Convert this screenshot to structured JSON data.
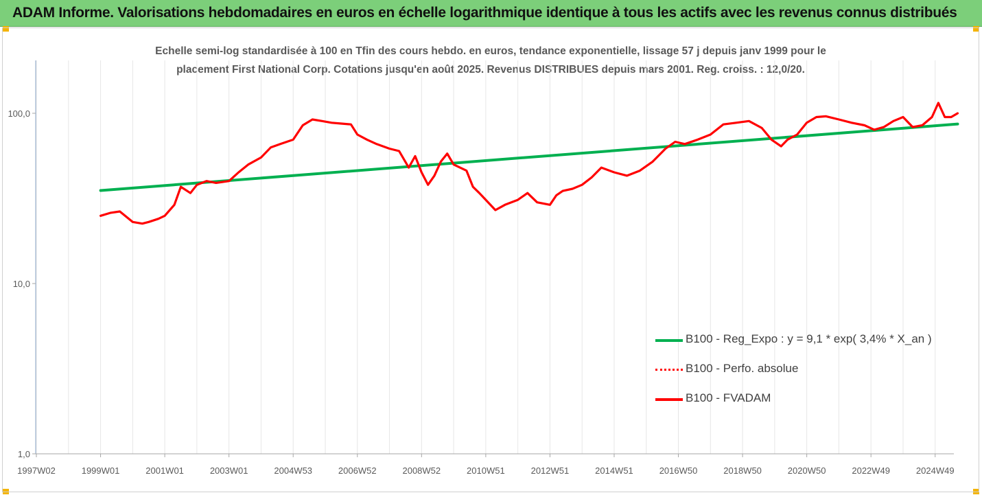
{
  "header": {
    "title": "ADAM Informe. Valorisations hebdomadaires en euros en échelle logarithmique identique à tous les actifs avec les revenus connus distribués"
  },
  "chart_data": {
    "type": "line",
    "subtitle_line1": "Echelle semi-log standardisée à 100 en Tfin des cours hebdo. en euros, tendance exponentielle, lissage 57 j depuis janv 1999 pour le",
    "subtitle_line2": "placement First National Corp. Cotations jusqu'en août 2025. Revenus DISTRIBUES depuis mars 2001. Reg. croiss. : 12,0/20.",
    "y_scale": "log",
    "ylim": [
      1,
      200
    ],
    "y_ticks": [
      "100,0",
      "10,0",
      "1,0"
    ],
    "y_tick_values": [
      100,
      10,
      1
    ],
    "xlim": [
      1997.0,
      2025.7
    ],
    "x_ticks": [
      "1997W02",
      "1999W01",
      "2001W01",
      "2003W01",
      "2004W53",
      "2006W52",
      "2008W52",
      "2010W51",
      "2012W51",
      "2014W51",
      "2016W50",
      "2018W50",
      "2020W50",
      "2022W49",
      "2024W49"
    ],
    "x_tick_values": [
      1997.0,
      1999.0,
      2001.0,
      2003.0,
      2005.0,
      2007.0,
      2009.0,
      2011.0,
      2013.0,
      2015.0,
      2017.0,
      2019.0,
      2021.0,
      2023.0,
      2025.0
    ],
    "grid": "vertical",
    "legend_position": "bottom-right",
    "series": [
      {
        "name": "B100 - Reg_Expo : y = 9,1 * exp( 3,4% *  X_an )",
        "color": "#00b050",
        "style": "solid",
        "x": [
          1999.0,
          2025.7
        ],
        "y": [
          35.2,
          86.5
        ]
      },
      {
        "name": "B100 - Perfo. absolue",
        "color": "#ff0000",
        "style": "dotted",
        "x": [],
        "y": []
      },
      {
        "name": "B100 - FVADAM",
        "color": "#ff0000",
        "style": "solid",
        "x": [
          1999.0,
          1999.3,
          1999.6,
          2000.0,
          2000.3,
          2000.5,
          2000.8,
          2001.0,
          2001.3,
          2001.5,
          2001.8,
          2002.0,
          2002.3,
          2002.6,
          2003.0,
          2003.3,
          2003.6,
          2004.0,
          2004.3,
          2004.6,
          2005.0,
          2005.3,
          2005.6,
          2005.9,
          2006.2,
          2006.5,
          2006.8,
          2007.0,
          2007.3,
          2007.6,
          2008.0,
          2008.3,
          2008.6,
          2008.8,
          2009.0,
          2009.2,
          2009.4,
          2009.6,
          2009.8,
          2010.0,
          2010.2,
          2010.4,
          2010.6,
          2010.8,
          2011.0,
          2011.3,
          2011.6,
          2012.0,
          2012.3,
          2012.6,
          2013.0,
          2013.2,
          2013.4,
          2013.7,
          2014.0,
          2014.3,
          2014.6,
          2015.0,
          2015.4,
          2015.8,
          2016.2,
          2016.6,
          2016.9,
          2017.2,
          2017.6,
          2018.0,
          2018.4,
          2018.8,
          2019.2,
          2019.6,
          2019.9,
          2020.2,
          2020.4,
          2020.7,
          2021.0,
          2021.3,
          2021.6,
          2022.0,
          2022.4,
          2022.8,
          2023.1,
          2023.4,
          2023.7,
          2024.0,
          2024.3,
          2024.6,
          2024.9,
          2025.1,
          2025.3,
          2025.5,
          2025.7
        ],
        "y": [
          25,
          26,
          26.5,
          23,
          22.5,
          23,
          24,
          25,
          29,
          37,
          34,
          38,
          40,
          39,
          40,
          45,
          50,
          55,
          63,
          66,
          70,
          85,
          92,
          90,
          88,
          87,
          86,
          75,
          70,
          66,
          62,
          60,
          48,
          56,
          45,
          38,
          43,
          52,
          58,
          50,
          48,
          46,
          37,
          34,
          31,
          27,
          29,
          31,
          34,
          30,
          29,
          33,
          35,
          36,
          38,
          42,
          48,
          45,
          43,
          46,
          52,
          62,
          68,
          66,
          70,
          75,
          86,
          88,
          90,
          82,
          70,
          64,
          70,
          75,
          88,
          95,
          96,
          92,
          88,
          85,
          80,
          83,
          90,
          95,
          83,
          85,
          95,
          115,
          95,
          95,
          100
        ]
      }
    ]
  }
}
